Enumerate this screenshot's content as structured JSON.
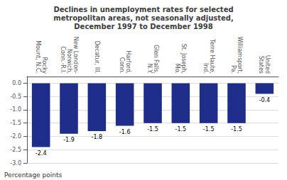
{
  "chart_data": {
    "type": "bar",
    "title": "Declines in unemployment rates for selected\nmetropolitan areas, not seasonally adjusted,\nDecember 1997 to December 1998",
    "categories": [
      "Rocky\nMount, N.C.",
      "New London-\nNorwich,\nConn.-R.I.",
      "Decatur, Ill.",
      "Harford,\nConn.",
      "Glen Falls,\nN.Y.",
      "St. Joseph,\nMo.",
      "Terre Haute,\nInd.",
      "Williamsport,\nPa.",
      "United\nStates"
    ],
    "values": [
      -2.4,
      -1.9,
      -1.8,
      -1.6,
      -1.5,
      -1.5,
      -1.5,
      -1.5,
      -0.4
    ],
    "color": "#1F2D8A",
    "ylabel": "Percentage points",
    "ylim": [
      -3.0,
      0.25
    ],
    "yticks": [
      {
        "value": 0.0,
        "label": "0.0"
      },
      -0.5,
      {
        "value": -1.0,
        "label": "-1.0"
      },
      -1.5,
      {
        "value": -2.0,
        "label": "-2.0"
      },
      -2.5,
      {
        "value": -3.0,
        "label": "-3.0"
      }
    ],
    "grid": true,
    "data_labels": true
  }
}
